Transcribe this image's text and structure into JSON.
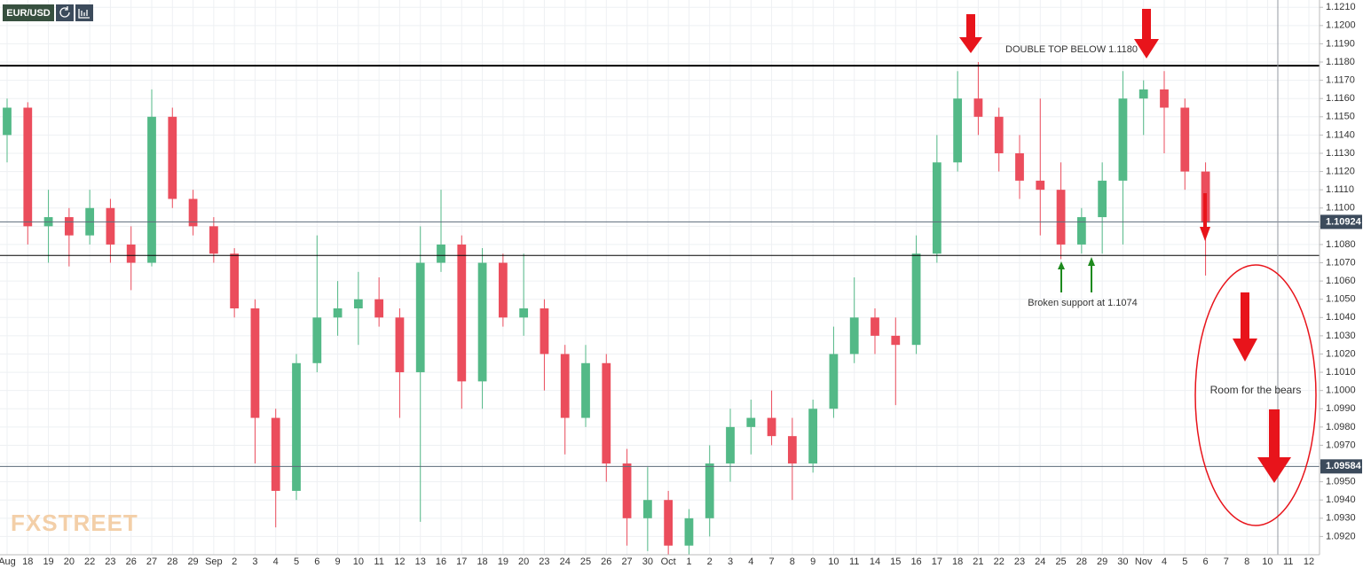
{
  "chart_data": {
    "type": "candlestick",
    "symbol": "EUR/USD",
    "watermark": "FXSTREET",
    "categories": [
      "Aug",
      "18",
      "19",
      "20",
      "22",
      "23",
      "26",
      "27",
      "28",
      "29",
      "Sep",
      "2",
      "3",
      "4",
      "5",
      "6",
      "9",
      "10",
      "11",
      "12",
      "13",
      "16",
      "17",
      "18",
      "19",
      "20",
      "23",
      "24",
      "25",
      "26",
      "27",
      "30",
      "Oct",
      "1",
      "2",
      "3",
      "4",
      "7",
      "8",
      "9",
      "10",
      "11",
      "14",
      "15",
      "16",
      "17",
      "18",
      "21",
      "22",
      "23",
      "24",
      "25",
      "28",
      "29",
      "30",
      "Nov",
      "4",
      "5",
      "6",
      "7",
      "8",
      "10",
      "11",
      "12"
    ],
    "open": [
      1.114,
      1.1155,
      1.109,
      1.1095,
      1.1085,
      1.11,
      1.108,
      1.107,
      1.115,
      1.1105,
      1.109,
      1.1075,
      1.1045,
      1.0985,
      1.0945,
      1.1015,
      1.104,
      1.1045,
      1.105,
      1.104,
      1.101,
      1.107,
      1.108,
      1.1005,
      1.107,
      1.104,
      1.1045,
      1.102,
      1.0985,
      1.1015,
      1.096,
      1.093,
      1.094,
      1.0915,
      1.093,
      1.096,
      1.098,
      1.0985,
      1.0975,
      1.096,
      1.099,
      1.102,
      1.104,
      1.103,
      1.1025,
      1.1075,
      1.1125,
      1.116,
      1.115,
      1.113,
      1.1115,
      1.111,
      1.108,
      1.1095,
      1.1115,
      1.116,
      1.1165,
      1.1155,
      1.112,
      null,
      null,
      null,
      null,
      null
    ],
    "high": [
      1.116,
      1.1158,
      1.111,
      1.11,
      1.111,
      1.1105,
      1.109,
      1.1165,
      1.1155,
      1.111,
      1.1095,
      1.1078,
      1.105,
      1.099,
      1.102,
      1.1085,
      1.106,
      1.1065,
      1.1062,
      1.1045,
      1.109,
      1.111,
      1.1085,
      1.1078,
      1.1075,
      1.1075,
      1.105,
      1.1025,
      1.1025,
      1.102,
      1.0968,
      1.0958,
      1.0945,
      1.0935,
      1.097,
      1.099,
      1.0995,
      1.1,
      1.0985,
      1.0995,
      1.1035,
      1.1062,
      1.1045,
      1.104,
      1.1085,
      1.114,
      1.1175,
      1.118,
      1.1155,
      1.114,
      1.116,
      1.1125,
      1.11,
      1.1125,
      1.1175,
      1.117,
      1.1175,
      1.116,
      1.1125,
      null,
      null,
      null,
      null,
      null
    ],
    "low": [
      1.1125,
      1.108,
      1.107,
      1.1068,
      1.108,
      1.107,
      1.1055,
      1.1068,
      1.11,
      1.1085,
      1.107,
      1.104,
      1.096,
      1.0925,
      1.094,
      1.101,
      1.103,
      1.1025,
      1.1035,
      1.0985,
      1.0928,
      1.1065,
      1.099,
      1.099,
      1.1035,
      1.103,
      1.1,
      1.0965,
      1.098,
      1.095,
      1.0915,
      1.0912,
      1.0905,
      1.091,
      1.092,
      1.095,
      1.0965,
      1.097,
      1.094,
      1.0955,
      1.0985,
      1.1015,
      1.102,
      1.0992,
      1.102,
      1.107,
      1.112,
      1.114,
      1.112,
      1.1105,
      1.1085,
      1.1072,
      1.1075,
      1.1075,
      1.108,
      1.114,
      1.113,
      1.111,
      1.1063,
      null,
      null,
      null,
      null,
      null
    ],
    "close": [
      1.1155,
      1.109,
      1.1095,
      1.1085,
      1.11,
      1.108,
      1.107,
      1.115,
      1.1105,
      1.109,
      1.1075,
      1.1045,
      1.0985,
      1.0945,
      1.1015,
      1.104,
      1.1045,
      1.105,
      1.104,
      1.101,
      1.107,
      1.108,
      1.1005,
      1.107,
      1.104,
      1.1045,
      1.102,
      1.0985,
      1.1015,
      1.096,
      1.093,
      1.094,
      1.0915,
      1.093,
      1.096,
      1.098,
      1.0985,
      1.0975,
      1.096,
      1.099,
      1.102,
      1.104,
      1.103,
      1.1025,
      1.1075,
      1.1125,
      1.116,
      1.115,
      1.113,
      1.1115,
      1.111,
      1.108,
      1.1095,
      1.1115,
      1.116,
      1.1165,
      1.1155,
      1.112,
      1.1092,
      null,
      null,
      null,
      null,
      null
    ],
    "up_color": "#53b987",
    "down_color": "#eb4d5c",
    "ylim": [
      1.091,
      1.1214
    ],
    "yticks": [
      {
        "value": 1.092,
        "label": "1.0920"
      },
      {
        "value": 1.093,
        "label": "1.0930"
      },
      {
        "value": 1.094,
        "label": "1.0940"
      },
      {
        "value": 1.095,
        "label": "1.0950"
      },
      {
        "value": 1.096,
        "label": "1.0960"
      },
      {
        "value": 1.097,
        "label": "1.0970"
      },
      {
        "value": 1.098,
        "label": "1.0980"
      },
      {
        "value": 1.099,
        "label": "1.0990"
      },
      {
        "value": 1.1,
        "label": "1.1000"
      },
      {
        "value": 1.101,
        "label": "1.1010"
      },
      {
        "value": 1.102,
        "label": "1.1020"
      },
      {
        "value": 1.103,
        "label": "1.1030"
      },
      {
        "value": 1.104,
        "label": "1.1040"
      },
      {
        "value": 1.105,
        "label": "1.1050"
      },
      {
        "value": 1.106,
        "label": "1.1060"
      },
      {
        "value": 1.107,
        "label": "1.1070"
      },
      {
        "value": 1.108,
        "label": "1.1080"
      },
      {
        "value": 1.109,
        "label": "1.1090"
      },
      {
        "value": 1.11,
        "label": "1.1100"
      },
      {
        "value": 1.111,
        "label": "1.1110"
      },
      {
        "value": 1.112,
        "label": "1.1120"
      },
      {
        "value": 1.113,
        "label": "1.1130"
      },
      {
        "value": 1.114,
        "label": "1.1140"
      },
      {
        "value": 1.115,
        "label": "1.1150"
      },
      {
        "value": 1.116,
        "label": "1.1160"
      },
      {
        "value": 1.117,
        "label": "1.1170"
      },
      {
        "value": 1.118,
        "label": "1.1180"
      },
      {
        "value": 1.119,
        "label": "1.1190"
      },
      {
        "value": 1.12,
        "label": "1.1200"
      },
      {
        "value": 1.121,
        "label": "1.1210"
      }
    ],
    "grid": true,
    "hlines": [
      1.1178,
      1.1074
    ],
    "price_lines": [
      1.10924,
      1.09584
    ],
    "annotations": [
      "DOUBLE TOP BELOW 1.1180",
      "Broken support at 1.1074",
      "Room for the bears"
    ]
  }
}
